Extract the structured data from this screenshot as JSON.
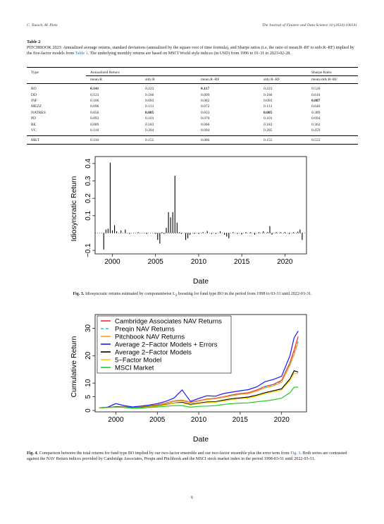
{
  "header": {
    "authors": "C. Tausch, M. Pietz",
    "journal": "The Journal of Finance and Data Science 10 (2024) 100141"
  },
  "table": {
    "label": "Table 2",
    "caption": "PITCHBOOK 2023: Annualized average returns, standard deviations (annualized by the square root of time formula), and Sharpe ratios (i.e. the ratio of mean.R–RF to stdv.R–RF) implied by the five-factor models from ",
    "caption_link": "Table 1",
    "caption_end": ". The underlying monthly returns are based on MSCI World style indices (in USD) from 1996 to 01-31 to 2023-02-28.",
    "group_headers": {
      "type": "Type",
      "annualized": "Annualized Return",
      "sharpe": "Sharpe Ratio"
    },
    "columns": [
      "mean.R",
      "stdv.R",
      "mean.R–RF",
      "stdv.R–RF",
      "mean/stdv.R–RF"
    ],
    "rows": [
      {
        "type": "BO",
        "values": [
          "0.141",
          "0.223",
          "0.117",
          "0.223",
          "0.526"
        ],
        "bold": [
          true,
          false,
          true,
          false,
          false
        ]
      },
      {
        "type": "DD",
        "values": [
          "0.123",
          "0.160",
          "0.099",
          "0.160",
          "0.616"
        ],
        "bold": [
          false,
          false,
          false,
          false,
          false
        ]
      },
      {
        "type": "INF",
        "values": [
          "0.106",
          "0.093",
          "0.082",
          "0.093",
          "0.887"
        ],
        "bold": [
          false,
          false,
          false,
          false,
          true
        ]
      },
      {
        "type": "MEZZ",
        "values": [
          "0.096",
          "0.113",
          "0.072",
          "0.113",
          "0.640"
        ],
        "bold": [
          false,
          false,
          false,
          false,
          false
        ]
      },
      {
        "type": "NATRES",
        "values": [
          "0.056",
          "0.085",
          "0.033",
          "0.085",
          "0.389"
        ],
        "bold": [
          false,
          true,
          false,
          true,
          false
        ]
      },
      {
        "type": "PD",
        "values": [
          "0.093",
          "0.101",
          "0.070",
          "0.101",
          "0.694"
        ],
        "bold": [
          false,
          false,
          false,
          false,
          false
        ]
      },
      {
        "type": "RE",
        "values": [
          "0.089",
          "0.183",
          "0.066",
          "0.183",
          "0.362"
        ],
        "bold": [
          false,
          false,
          false,
          false,
          false
        ]
      },
      {
        "type": "VC",
        "values": [
          "0.118",
          "0.204",
          "0.094",
          "0.205",
          "0.459"
        ],
        "bold": [
          false,
          false,
          false,
          false,
          false
        ]
      }
    ],
    "market_row": {
      "type": "MKT",
      "values": [
        "0.110",
        "0.155",
        "0.086",
        "0.155",
        "0.555"
      ]
    }
  },
  "figure3": {
    "caption_label": "Fig. 3.",
    "caption_text": "Idiosyncratic returns estimated by componentwise L",
    "caption_sub": "2",
    "caption_end": " boosting for fund type BO in the period from 1998 to 03-31 until 2022-03-31."
  },
  "figure4": {
    "caption_label": "Fig. 4.",
    "caption_text": "Comparison between the total returns for fund type BO implied by our two-factor ensemble and our two-factor ensemble plus the error term from ",
    "caption_link": "Fig. 3",
    "caption_end": ". Both series are contrasted against the NAV Return indices provided by Cambridge Associates, Preqin and Pitchbook and the MSCI stock market index in the period 1998-03-31 until 2022-03-31."
  },
  "page_number": "6",
  "chart_data": [
    {
      "type": "bar",
      "xlabel": "Date",
      "ylabel": "Idiosyncratic Return",
      "xlim": [
        1998.0,
        2022.5
      ],
      "ylim": [
        -0.12,
        0.44
      ],
      "xticks": [
        "2000",
        "2005",
        "2010",
        "2015",
        "2020"
      ],
      "yticks": [
        "−0.1",
        "0.1",
        "0.2",
        "0.3",
        "0.4"
      ],
      "grid": false,
      "x": [
        1999.0,
        1999.25,
        1999.5,
        1999.75,
        2000.0,
        2000.25,
        2000.5,
        2001.0,
        2001.5,
        2002.0,
        2003.0,
        2004.0,
        2005.0,
        2005.25,
        2005.5,
        2005.75,
        2006.0,
        2006.25,
        2006.5,
        2006.75,
        2007.0,
        2007.25,
        2007.5,
        2007.75,
        2008.0,
        2008.5,
        2008.75,
        2009.0,
        2009.5,
        2010.0,
        2010.5,
        2011.0,
        2011.5,
        2012.0,
        2012.5,
        2013.0,
        2013.25,
        2013.5,
        2014.0,
        2014.5,
        2015.0,
        2015.5,
        2016.0,
        2016.5,
        2017.0,
        2017.5,
        2018.0,
        2018.25,
        2018.5,
        2019.0,
        2019.5,
        2020.0,
        2020.5,
        2021.0,
        2021.5,
        2021.75,
        2022.0
      ],
      "values": [
        -0.095,
        0.02,
        0.025,
        0.405,
        0.015,
        0.045,
        0.01,
        0.015,
        0.02,
        -0.005,
        0.005,
        -0.005,
        -0.005,
        -0.04,
        -0.06,
        0.005,
        -0.005,
        0.03,
        0.12,
        0.09,
        0.12,
        0.33,
        0.06,
        0.005,
        -0.005,
        -0.04,
        -0.03,
        -0.01,
        -0.005,
        -0.005,
        0.005,
        0.012,
        -0.005,
        -0.005,
        0.01,
        -0.01,
        -0.02,
        -0.03,
        0.005,
        -0.005,
        -0.008,
        0.005,
        0.005,
        -0.01,
        0.005,
        0.01,
        0.005,
        0.04,
        -0.01,
        0.005,
        0.005,
        0.005,
        -0.005,
        0.005,
        0.008,
        0.02,
        -0.04
      ]
    },
    {
      "type": "line",
      "xlabel": "Date",
      "ylabel": "Cumulative Return",
      "xlim": [
        1997.5,
        2023.0
      ],
      "ylim": [
        -0.5,
        35
      ],
      "xticks": [
        "2000",
        "2005",
        "2010",
        "2015",
        "2020"
      ],
      "yticks": [
        "0",
        "5",
        "10",
        "20",
        "30"
      ],
      "grid": false,
      "legend": "top-left",
      "x": [
        1998,
        1999,
        2000,
        2001,
        2002,
        2003,
        2004,
        2005,
        2006,
        2007,
        2008,
        2009,
        2010,
        2011,
        2012,
        2013,
        2014,
        2015,
        2016,
        2017,
        2018,
        2019,
        2020,
        2021,
        2021.5,
        2022
      ],
      "series": [
        {
          "name": "Cambridge Associates NAV Returns",
          "color": "#ff2a2a",
          "dash": "solid",
          "values": [
            1.0,
            1.1,
            1.3,
            1.3,
            1.1,
            1.3,
            1.7,
            2.1,
            2.7,
            3.5,
            3.8,
            3.0,
            3.6,
            4.2,
            4.5,
            5.0,
            5.7,
            6.2,
            6.5,
            7.5,
            8.8,
            9.5,
            11.0,
            17.5,
            22.0,
            27.0
          ]
        },
        {
          "name": "Preqin NAV Returns",
          "color": "#19c8d6",
          "dash": "dashed",
          "values": [
            1.0,
            1.1,
            1.3,
            1.3,
            1.1,
            1.3,
            1.7,
            2.1,
            2.6,
            3.4,
            3.7,
            2.9,
            3.5,
            4.1,
            4.4,
            4.9,
            5.6,
            6.0,
            6.3,
            7.3,
            8.6,
            9.3,
            10.7,
            17.0,
            21.0,
            25.5
          ]
        },
        {
          "name": "Pitchbook NAV Returns",
          "color": "#ff9a1a",
          "dash": "solid",
          "values": [
            1.0,
            1.1,
            1.2,
            1.2,
            1.0,
            1.2,
            1.6,
            2.0,
            2.5,
            3.3,
            3.6,
            2.8,
            3.4,
            4.0,
            4.3,
            4.8,
            5.4,
            5.9,
            6.2,
            7.1,
            8.3,
            9.0,
            10.3,
            16.5,
            20.5,
            25.0
          ]
        },
        {
          "name": "Average 2−Factor Models + Errors",
          "color": "#1a1aff",
          "dash": "solid",
          "values": [
            1.0,
            1.2,
            2.5,
            1.8,
            1.3,
            1.6,
            2.0,
            2.5,
            3.3,
            4.5,
            7.5,
            3.3,
            4.4,
            5.4,
            5.2,
            6.2,
            6.7,
            7.2,
            7.6,
            8.6,
            10.5,
            11.3,
            12.5,
            20.0,
            26.5,
            29.0
          ]
        },
        {
          "name": "Average 2−Factor Models",
          "color": "#000000",
          "dash": "solid",
          "values": [
            1.0,
            1.1,
            1.4,
            1.3,
            0.9,
            1.1,
            1.4,
            1.7,
            2.1,
            2.7,
            3.0,
            2.2,
            2.7,
            3.1,
            3.2,
            3.8,
            4.3,
            4.6,
            4.9,
            5.6,
            6.5,
            7.2,
            7.9,
            11.5,
            14.5,
            14.0
          ]
        },
        {
          "name": "5−Factor Model",
          "color": "#f5d000",
          "dash": "solid",
          "values": [
            1.0,
            1.1,
            1.3,
            1.2,
            0.8,
            1.0,
            1.3,
            1.6,
            2.0,
            2.6,
            2.8,
            2.0,
            2.5,
            2.9,
            3.0,
            3.5,
            4.0,
            4.3,
            4.6,
            5.3,
            6.2,
            6.8,
            7.5,
            11.0,
            13.5,
            13.5
          ]
        },
        {
          "name": "MSCI Market",
          "color": "#22cc22",
          "dash": "solid",
          "values": [
            1.0,
            1.1,
            1.3,
            1.1,
            0.8,
            0.9,
            1.1,
            1.3,
            1.5,
            1.8,
            1.8,
            1.2,
            1.5,
            1.6,
            1.8,
            2.2,
            2.5,
            2.7,
            2.8,
            3.2,
            3.5,
            3.9,
            4.5,
            6.5,
            8.5,
            8.5
          ]
        }
      ]
    }
  ]
}
